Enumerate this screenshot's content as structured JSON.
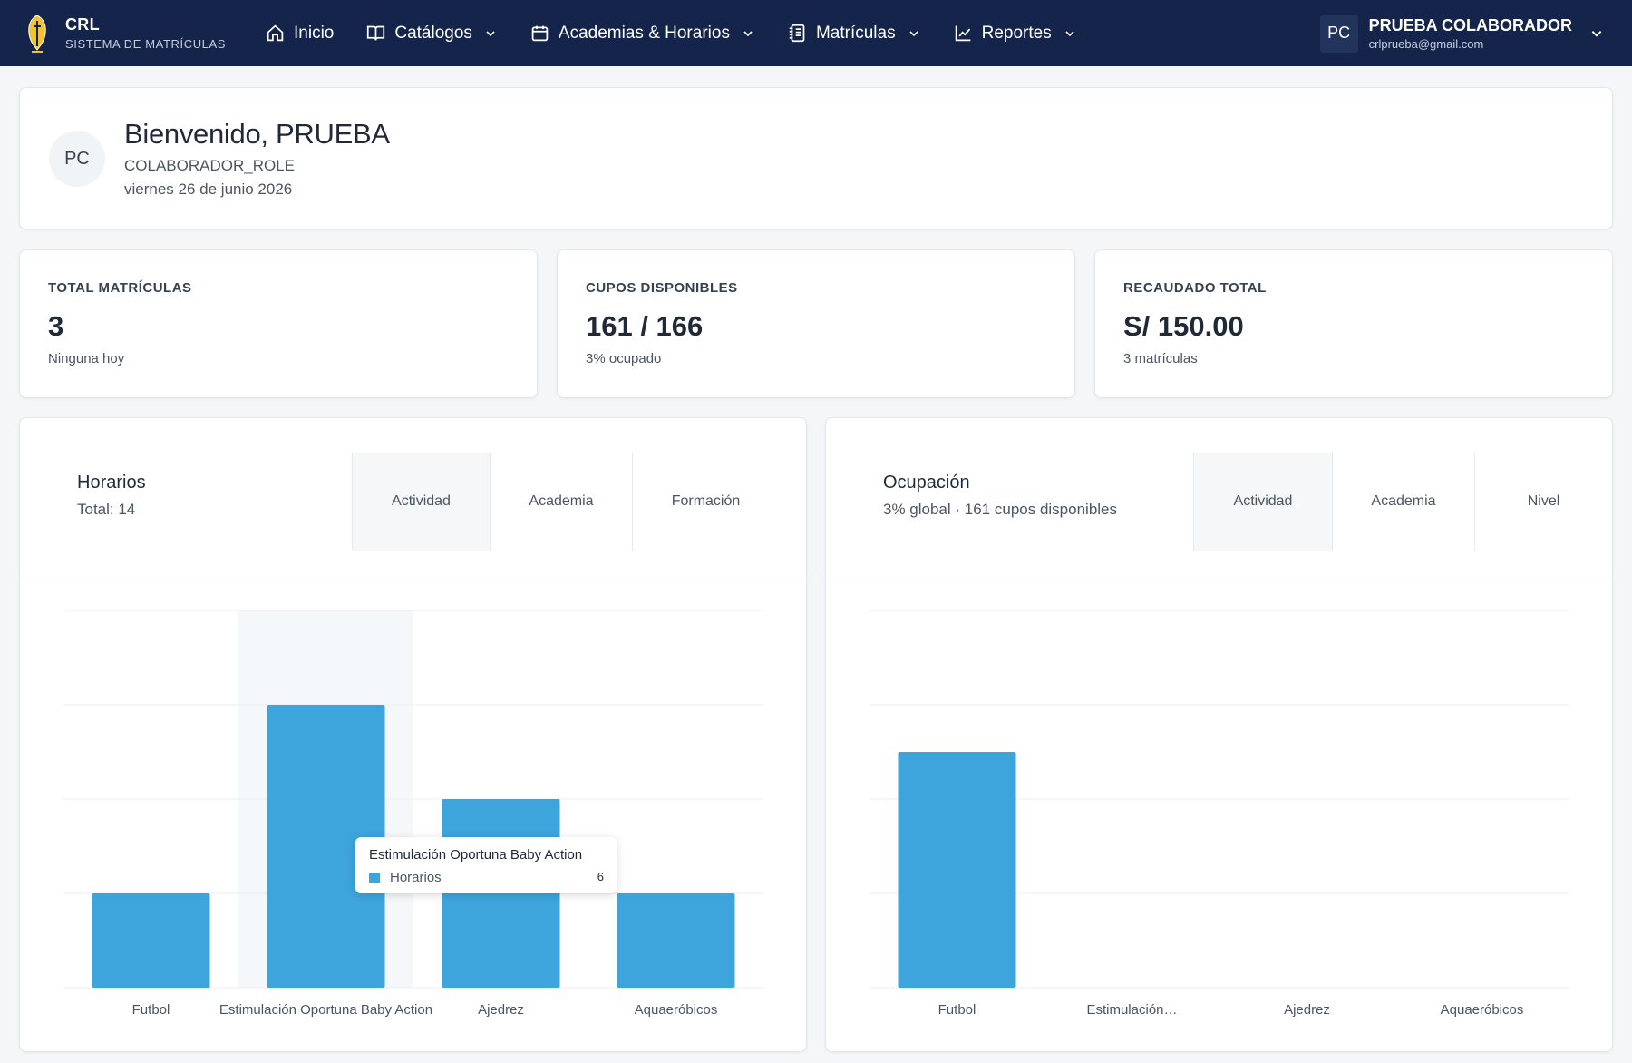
{
  "navbar": {
    "brand_name": "CRL",
    "brand_sub": "SISTEMA DE MATRÍCULAS",
    "items": [
      {
        "label": "Inicio",
        "icon": "home-icon",
        "dropdown": false
      },
      {
        "label": "Catálogos",
        "icon": "book-icon",
        "dropdown": true
      },
      {
        "label": "Academias & Horarios",
        "icon": "calendar-icon",
        "dropdown": true
      },
      {
        "label": "Matrículas",
        "icon": "notebook-icon",
        "dropdown": true
      },
      {
        "label": "Reportes",
        "icon": "line-chart-icon",
        "dropdown": true
      }
    ],
    "user": {
      "initials": "PC",
      "name": "PRUEBA COLABORADOR",
      "email": "crlprueba@gmail.com"
    }
  },
  "welcome": {
    "initials": "PC",
    "title": "Bienvenido, PRUEBA",
    "role": "COLABORADOR_ROLE",
    "date": "viernes 26 de junio 2026"
  },
  "stats": [
    {
      "label": "TOTAL MATRÍCULAS",
      "value": "3",
      "sub": "Ninguna hoy"
    },
    {
      "label": "CUPOS DISPONIBLES",
      "value": "161 / 166",
      "sub": "3% ocupado"
    },
    {
      "label": "RECAUDADO TOTAL",
      "value": "S/ 150.00",
      "sub": "3 matrículas"
    }
  ],
  "horarios_panel": {
    "title": "Horarios",
    "subtitle": "Total: 14",
    "tabs": [
      "Actividad",
      "Academia",
      "Formación"
    ],
    "active_tab": 0
  },
  "ocupacion_panel": {
    "title": "Ocupación",
    "subtitle": "3% global · 161 cupos disponibles",
    "tabs": [
      "Actividad",
      "Academia",
      "Nivel"
    ],
    "active_tab": 0
  },
  "tooltip": {
    "title": "Estimulación Oportuna Baby Action",
    "series": "Horarios",
    "value": "6"
  },
  "colors": {
    "navbar": "#15244a",
    "bar": "#3da5dc",
    "hover_band": "#f5f8fa"
  },
  "chart_data": [
    {
      "type": "bar",
      "categories": [
        "Futbol",
        "Estimulación Oportuna Baby Action",
        "Ajedrez",
        "Aquaeróbicos"
      ],
      "series": [
        {
          "name": "Horarios",
          "values": [
            2,
            6,
            4,
            2
          ]
        }
      ],
      "ylim": [
        0,
        8
      ],
      "grid": true,
      "highlight_index": 1
    },
    {
      "type": "bar",
      "categories": [
        "Futbol",
        "Estimulación Oportuna Baby Action",
        "Ajedrez",
        "Aquaeróbicos"
      ],
      "tick_labels": [
        "Futbol",
        "Estimulación…",
        "Ajedrez",
        "Aquaeróbicos"
      ],
      "values": [
        5,
        0,
        0,
        0
      ],
      "ylim": [
        0,
        8
      ],
      "grid": true
    }
  ]
}
